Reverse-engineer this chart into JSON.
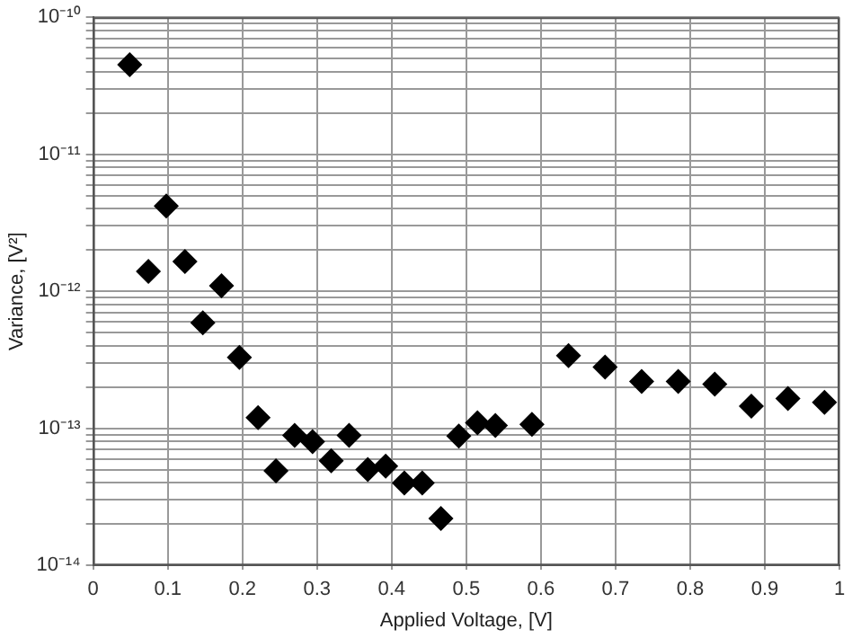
{
  "chart_data": {
    "type": "scatter",
    "xlabel": "Applied Voltage, [V]",
    "ylabel": "Variance, [V²]",
    "x": [
      0.049,
      0.074,
      0.098,
      0.123,
      0.147,
      0.172,
      0.196,
      0.221,
      0.245,
      0.27,
      0.294,
      0.319,
      0.343,
      0.368,
      0.392,
      0.417,
      0.441,
      0.466,
      0.49,
      0.515,
      0.539,
      0.588,
      0.637,
      0.686,
      0.735,
      0.784,
      0.833,
      0.882,
      0.931,
      0.98
    ],
    "series": [
      {
        "color": "#000000",
        "values": [
          4.5e-11,
          1.4e-12,
          4.2e-12,
          1.65e-12,
          5.9e-13,
          1.1e-12,
          3.3e-13,
          1.2e-13,
          4.9e-14,
          8.9e-14,
          8e-14,
          5.8e-14,
          8.9e-14,
          5e-14,
          5.3e-14,
          4e-14,
          4e-14,
          2.2e-14,
          8.8e-14,
          1.1e-13,
          1.05e-13,
          1.07e-13,
          3.4e-13,
          2.8e-13,
          2.2e-13,
          2.2e-13,
          2.1e-13,
          1.45e-13,
          1.65e-13,
          1.55e-13
        ]
      }
    ],
    "log": "y",
    "marker": "diamond",
    "grid": true,
    "legend": false,
    "xlim": [
      0,
      1
    ],
    "xticks": [
      0,
      0.1,
      0.2,
      0.3,
      0.4,
      0.5,
      0.6,
      0.7,
      0.8,
      0.9,
      1
    ],
    "ylim": [
      1e-14,
      1e-10
    ],
    "yticks": [
      {
        "value": 1e-14,
        "label": "10⁻¹⁴"
      },
      {
        "value": 2e-14,
        "label": null
      },
      {
        "value": 3e-14,
        "label": null
      },
      {
        "value": 4e-14,
        "label": null
      },
      {
        "value": 5e-14,
        "label": null
      },
      {
        "value": 6e-14,
        "label": null
      },
      {
        "value": 7e-14,
        "label": null
      },
      {
        "value": 8e-14,
        "label": null
      },
      {
        "value": 9e-14,
        "label": null
      },
      {
        "value": 1e-13,
        "label": "10⁻¹³"
      },
      {
        "value": 2e-13,
        "label": null
      },
      {
        "value": 3e-13,
        "label": null
      },
      {
        "value": 4e-13,
        "label": null
      },
      {
        "value": 5e-13,
        "label": null
      },
      {
        "value": 6e-13,
        "label": null
      },
      {
        "value": 7e-13,
        "label": null
      },
      {
        "value": 8e-13,
        "label": null
      },
      {
        "value": 9e-13,
        "label": null
      },
      {
        "value": 1e-12,
        "label": "10⁻¹²"
      },
      {
        "value": 2e-12,
        "label": null
      },
      {
        "value": 3e-12,
        "label": null
      },
      {
        "value": 4e-12,
        "label": null
      },
      {
        "value": 5e-12,
        "label": null
      },
      {
        "value": 6e-12,
        "label": null
      },
      {
        "value": 7e-12,
        "label": null
      },
      {
        "value": 8e-12,
        "label": null
      },
      {
        "value": 9e-12,
        "label": null
      },
      {
        "value": 1e-11,
        "label": "10⁻¹¹"
      },
      {
        "value": 2e-11,
        "label": null
      },
      {
        "value": 3e-11,
        "label": null
      },
      {
        "value": 4e-11,
        "label": null
      },
      {
        "value": 5e-11,
        "label": null
      },
      {
        "value": 6e-11,
        "label": null
      },
      {
        "value": 7e-11,
        "label": null
      },
      {
        "value": 8e-11,
        "label": null
      },
      {
        "value": 9e-11,
        "label": null
      },
      {
        "value": 1e-10,
        "label": "10⁻¹⁰"
      }
    ]
  }
}
